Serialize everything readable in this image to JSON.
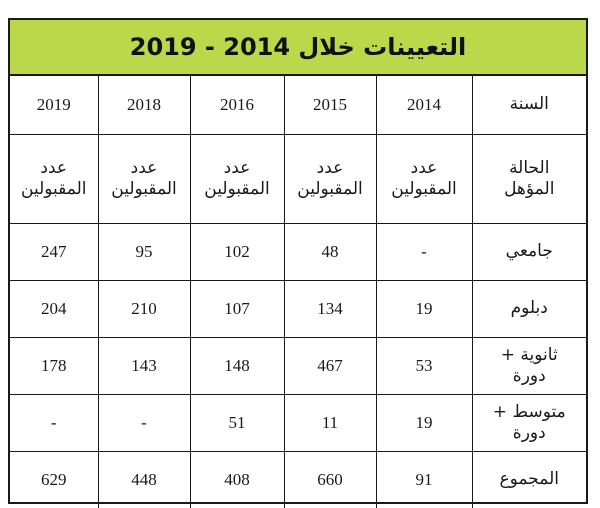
{
  "title": "التعيينات خلال 2014 - 2019",
  "header": {
    "year_label": "السنة",
    "years": [
      "2014",
      "2015",
      "2016",
      "2018",
      "2019"
    ]
  },
  "subheader": {
    "label_line1": "الحالة",
    "label_line2": "المؤهل",
    "col_line1": "عدد",
    "col_line2": "المقبولين"
  },
  "rows": [
    {
      "label_line1": "جامعي",
      "label_line2": "",
      "values": [
        "-",
        "48",
        "102",
        "95",
        "247"
      ]
    },
    {
      "label_line1": "دبلوم",
      "label_line2": "",
      "values": [
        "19",
        "134",
        "107",
        "210",
        "204"
      ]
    },
    {
      "label_line1": "ثانوية +",
      "label_line2": "دورة",
      "values": [
        "53",
        "467",
        "148",
        "143",
        "178"
      ]
    },
    {
      "label_line1": "متوسط +",
      "label_line2": "دورة",
      "values": [
        "19",
        "11",
        "51",
        "-",
        "-"
      ]
    },
    {
      "label_line1": "المجموع",
      "label_line2": "",
      "values": [
        "91",
        "660",
        "408",
        "448",
        "629"
      ]
    }
  ]
}
